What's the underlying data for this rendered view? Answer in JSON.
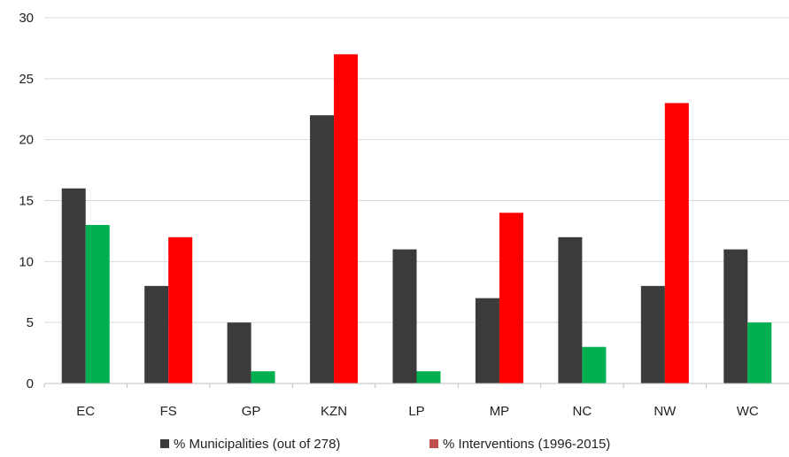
{
  "chart_data": {
    "type": "bar",
    "categories": [
      "EC",
      "FS",
      "GP",
      "KZN",
      "LP",
      "MP",
      "NC",
      "NW",
      "WC"
    ],
    "series": [
      {
        "name": "% Municipalities (out of 278)",
        "color": "#3b3b3b",
        "values": [
          16,
          8,
          5,
          22,
          11,
          7,
          12,
          8,
          11
        ]
      },
      {
        "name": "% Interventions (1996-2015)",
        "color": "#ff0000",
        "legend_color": "#c0504d",
        "values": [
          13,
          12,
          1,
          27,
          1,
          14,
          3,
          23,
          5
        ],
        "point_colors": [
          "#00b050",
          "#ff0000",
          "#00b050",
          "#ff0000",
          "#00b050",
          "#ff0000",
          "#00b050",
          "#ff0000",
          "#00b050"
        ]
      }
    ],
    "ylim": [
      0,
      30
    ],
    "yticks": [
      "0",
      "5",
      "10",
      "15",
      "20",
      "25",
      "30"
    ],
    "grid": true,
    "legend_position": "bottom"
  }
}
